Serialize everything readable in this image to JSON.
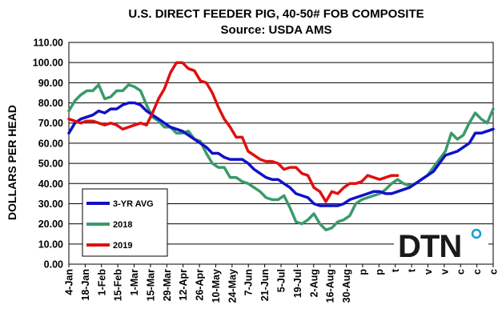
{
  "chart_data": {
    "type": "line",
    "title": "U.S. DIRECT FEEDER PIG, 40-50# FOB COMPOSITE",
    "subtitle": "Source:  USDA AMS",
    "ylabel": "DOLLARS PER HEAD",
    "xlabel": "",
    "ylim": [
      0,
      110
    ],
    "y_ticks": [
      "0.00",
      "10.00",
      "20.00",
      "30.00",
      "40.00",
      "50.00",
      "60.00",
      "70.00",
      "80.00",
      "90.00",
      "100.00",
      "110.00"
    ],
    "x_tick_labels": [
      "4-Jan",
      "18-Jan",
      "1-Feb",
      "15-Feb",
      "1-Mar",
      "15-Mar",
      "29-Mar",
      "12-Apr",
      "26-Apr",
      "10-May",
      "24-May",
      "7-Jun",
      "21-Jun",
      "5-Jul",
      "19-Jul",
      "2-Aug",
      "16-Aug",
      "30-Aug",
      "p",
      "p",
      "t",
      "t",
      "v",
      "v",
      "c",
      "c",
      "c"
    ],
    "grid": true,
    "legend_position": "bottom-left",
    "logo_text": "DTN",
    "series": [
      {
        "name": "3-YR AVG",
        "color": "#1010c8",
        "values": [
          65,
          70,
          72,
          73,
          74,
          76,
          75,
          77,
          77,
          79,
          80,
          80,
          79,
          76,
          74,
          72,
          70,
          68,
          67,
          66,
          64,
          62,
          60,
          58,
          55,
          55,
          53,
          52,
          52,
          52,
          50,
          47,
          45,
          43,
          42,
          42,
          40,
          38,
          35,
          34,
          33,
          30,
          29,
          29,
          29,
          29,
          30,
          32,
          33,
          34,
          35,
          36,
          36,
          35,
          35,
          36,
          37,
          38,
          40,
          42,
          44,
          46,
          50,
          54,
          55,
          56,
          58,
          60,
          65,
          65,
          66,
          67
        ]
      },
      {
        "name": "2018",
        "color": "#3a9a6a",
        "values": [
          76,
          81,
          84,
          86,
          86,
          89,
          82,
          83,
          86,
          86,
          89,
          88,
          86,
          79,
          73,
          71,
          68,
          68,
          65,
          65,
          66,
          62,
          61,
          55,
          50,
          48,
          48,
          43,
          43,
          41,
          40,
          38,
          36,
          33,
          32,
          32,
          34,
          28,
          21,
          20,
          22,
          25,
          20,
          17,
          18,
          21,
          22,
          24,
          30,
          32,
          33,
          34,
          35,
          37,
          40,
          42,
          40,
          39,
          40,
          42,
          44,
          48,
          52,
          56,
          65,
          62,
          64,
          70,
          75,
          72,
          70,
          77
        ]
      },
      {
        "name": "2019",
        "color": "#e01010",
        "values": [
          72,
          71,
          70,
          71,
          71,
          70,
          69,
          70,
          69,
          67,
          68,
          69,
          70,
          69,
          75,
          82,
          87,
          95,
          100,
          100,
          97,
          96,
          91,
          90,
          85,
          78,
          72,
          68,
          63,
          63,
          56,
          54,
          52,
          51,
          51,
          50,
          47,
          48,
          48,
          45,
          44,
          38,
          36,
          31,
          36,
          35,
          38,
          40,
          40,
          41,
          44,
          43,
          42,
          43,
          44,
          44
        ]
      }
    ]
  }
}
